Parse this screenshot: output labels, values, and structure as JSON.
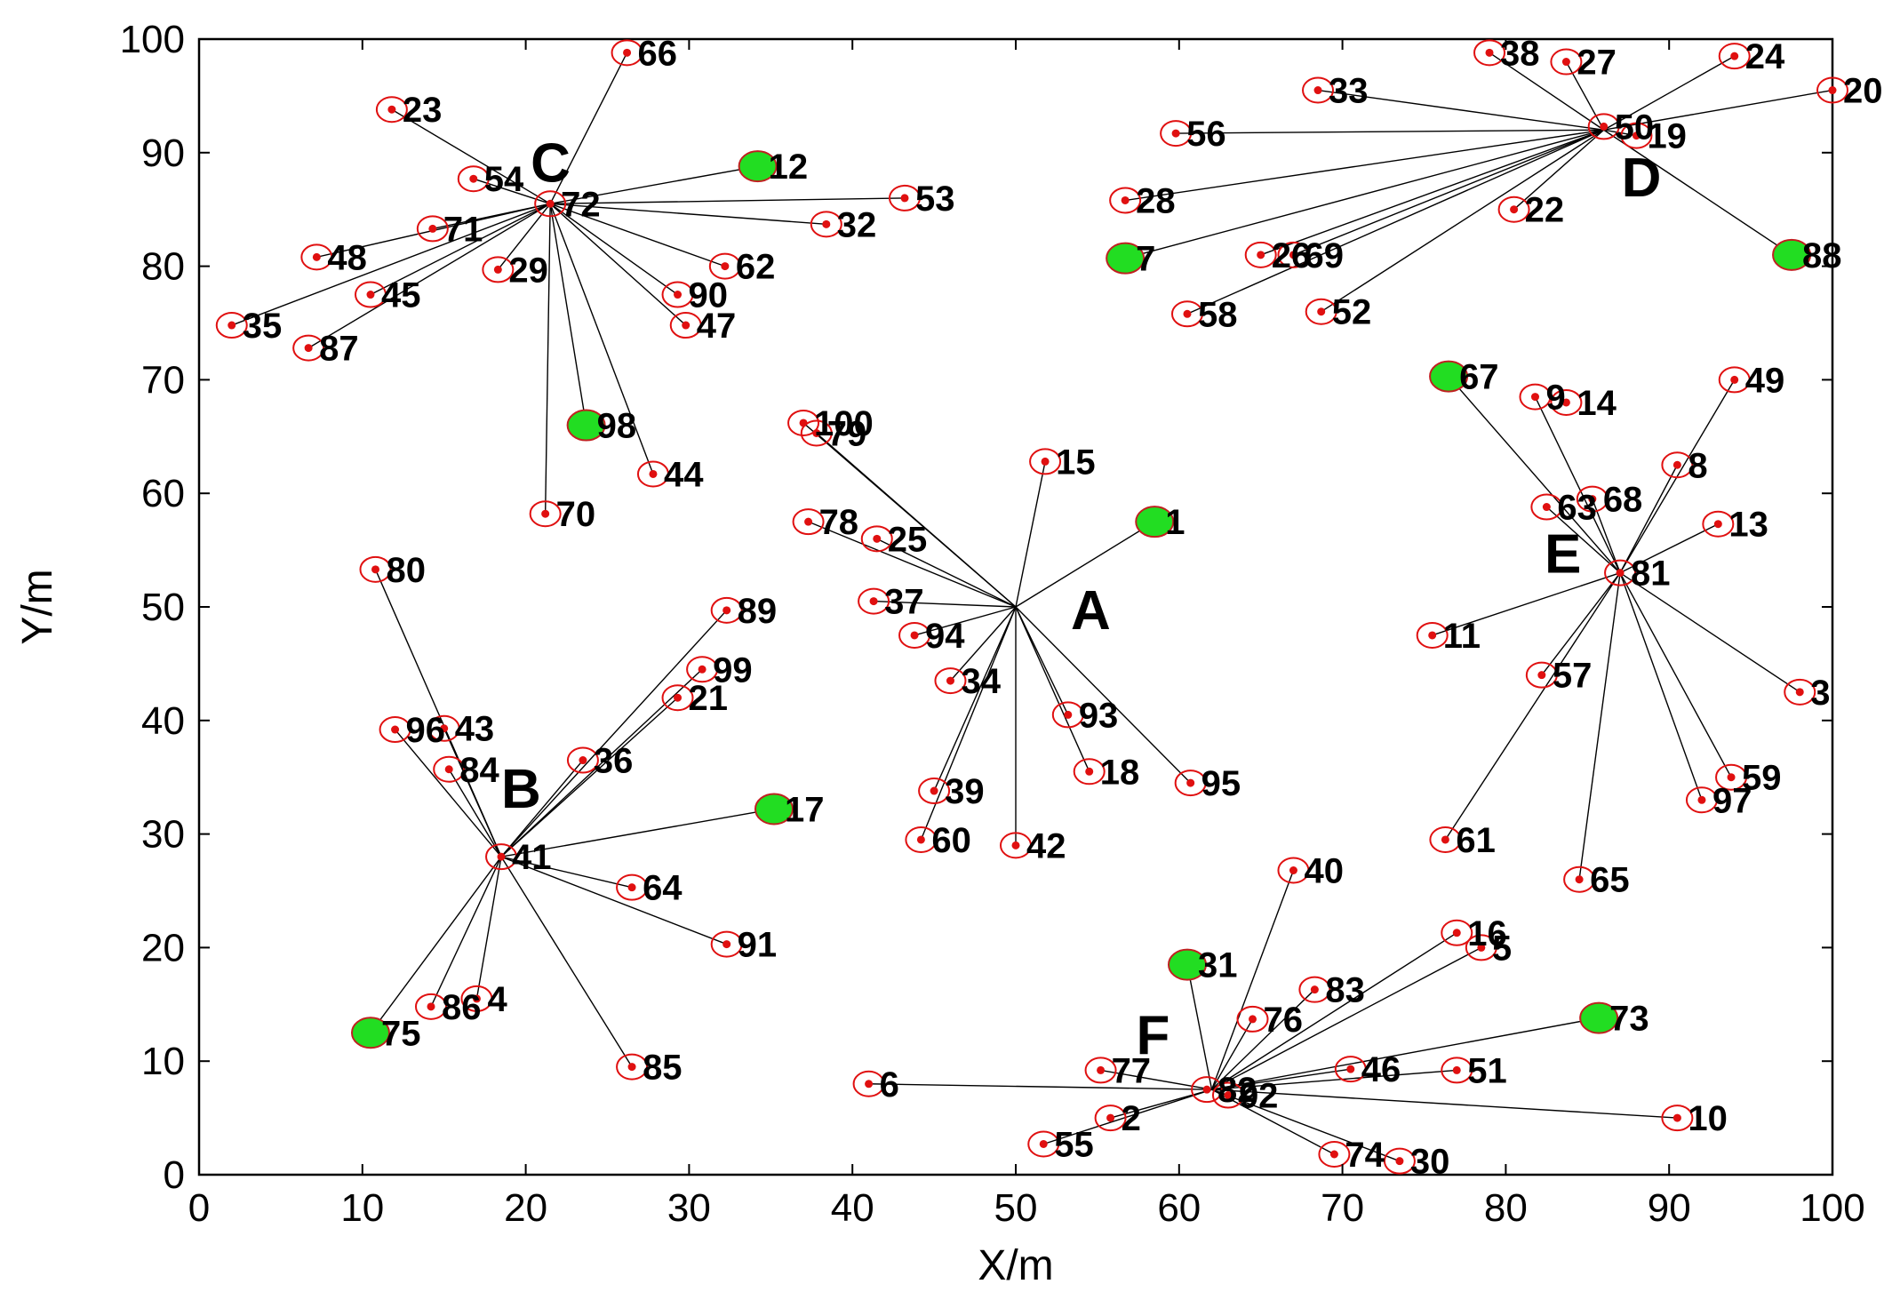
{
  "chart_data": {
    "type": "scatter",
    "xlabel": "X/m",
    "ylabel": "Y/m",
    "xlim": [
      0,
      100
    ],
    "ylim": [
      0,
      100
    ],
    "xticks": [
      0,
      10,
      20,
      30,
      40,
      50,
      60,
      70,
      80,
      90,
      100
    ],
    "yticks": [
      0,
      10,
      20,
      30,
      40,
      50,
      60,
      70,
      80,
      90,
      100
    ],
    "grid": false,
    "colors": {
      "node": "#e01010",
      "head": "#22dd22",
      "ring": "#e01010",
      "link": "#000000"
    },
    "clusters": [
      {
        "label": "A",
        "center": [
          50,
          50
        ]
      },
      {
        "label": "B",
        "center": [
          18.5,
          28
        ]
      },
      {
        "label": "C",
        "center": [
          21.5,
          85.5
        ]
      },
      {
        "label": "D",
        "center": [
          86,
          92
        ]
      },
      {
        "label": "E",
        "center": [
          87,
          53
        ]
      },
      {
        "label": "F",
        "center": [
          62,
          7.5
        ]
      }
    ],
    "nodes": [
      {
        "id": "1",
        "x": 58.5,
        "y": 57.5,
        "type": "head",
        "cluster": "A"
      },
      {
        "id": "2",
        "x": 55.8,
        "y": 5,
        "cluster": "F"
      },
      {
        "id": "3",
        "x": 98,
        "y": 42.5,
        "cluster": "E"
      },
      {
        "id": "4",
        "x": 17,
        "y": 15.5,
        "cluster": "B"
      },
      {
        "id": "5",
        "x": 78.5,
        "y": 20,
        "cluster": "F"
      },
      {
        "id": "6",
        "x": 41,
        "y": 8,
        "cluster": "F"
      },
      {
        "id": "7",
        "x": 56.7,
        "y": 80.7,
        "type": "head",
        "cluster": "D"
      },
      {
        "id": "8",
        "x": 90.5,
        "y": 62.5,
        "cluster": "E"
      },
      {
        "id": "9",
        "x": 81.8,
        "y": 68.5,
        "cluster": "E"
      },
      {
        "id": "10",
        "x": 90.5,
        "y": 5,
        "cluster": "F"
      },
      {
        "id": "11",
        "x": 75.5,
        "y": 47.5,
        "cluster": "E"
      },
      {
        "id": "12",
        "x": 34.2,
        "y": 88.8,
        "type": "head",
        "cluster": "C"
      },
      {
        "id": "13",
        "x": 93,
        "y": 57.3,
        "cluster": "E"
      },
      {
        "id": "14",
        "x": 83.7,
        "y": 68
      },
      {
        "id": "15",
        "x": 51.8,
        "y": 62.8,
        "cluster": "A"
      },
      {
        "id": "16",
        "x": 77,
        "y": 21.3,
        "cluster": "F"
      },
      {
        "id": "17",
        "x": 35.2,
        "y": 32.2,
        "type": "head",
        "cluster": "B"
      },
      {
        "id": "18",
        "x": 54.5,
        "y": 35.5,
        "cluster": "A"
      },
      {
        "id": "19",
        "x": 88,
        "y": 91.5,
        "cluster": "D"
      },
      {
        "id": "20",
        "x": 100,
        "y": 95.5,
        "cluster": "D"
      },
      {
        "id": "21",
        "x": 29.3,
        "y": 42,
        "cluster": "B"
      },
      {
        "id": "22",
        "x": 80.5,
        "y": 85,
        "cluster": "D"
      },
      {
        "id": "23",
        "x": 11.8,
        "y": 93.8,
        "cluster": "C"
      },
      {
        "id": "24",
        "x": 94,
        "y": 98.5,
        "cluster": "D"
      },
      {
        "id": "25",
        "x": 41.5,
        "y": 56,
        "cluster": "A"
      },
      {
        "id": "26",
        "x": 65,
        "y": 81,
        "cluster": "D"
      },
      {
        "id": "27",
        "x": 83.7,
        "y": 98,
        "cluster": "D"
      },
      {
        "id": "28",
        "x": 56.7,
        "y": 85.8,
        "cluster": "D"
      },
      {
        "id": "29",
        "x": 18.3,
        "y": 79.7,
        "cluster": "C"
      },
      {
        "id": "30",
        "x": 73.5,
        "y": 1.2,
        "cluster": "F"
      },
      {
        "id": "31",
        "x": 60.5,
        "y": 18.5,
        "type": "head",
        "cluster": "F"
      },
      {
        "id": "32",
        "x": 38.4,
        "y": 83.7,
        "cluster": "C"
      },
      {
        "id": "33",
        "x": 68.5,
        "y": 95.5,
        "cluster": "D"
      },
      {
        "id": "34",
        "x": 46,
        "y": 43.5,
        "cluster": "A"
      },
      {
        "id": "35",
        "x": 2,
        "y": 74.8,
        "cluster": "C"
      },
      {
        "id": "36",
        "x": 23.5,
        "y": 36.5,
        "cluster": "B"
      },
      {
        "id": "37",
        "x": 41.3,
        "y": 50.5,
        "cluster": "A"
      },
      {
        "id": "38",
        "x": 79,
        "y": 98.8,
        "cluster": "D"
      },
      {
        "id": "39",
        "x": 45,
        "y": 33.8,
        "cluster": "A"
      },
      {
        "id": "40",
        "x": 67,
        "y": 26.8,
        "cluster": "F"
      },
      {
        "id": "41",
        "x": 18.5,
        "y": 28
      },
      {
        "id": "42",
        "x": 50,
        "y": 29,
        "cluster": "A"
      },
      {
        "id": "43",
        "x": 15,
        "y": 39.3,
        "cluster": "B"
      },
      {
        "id": "44",
        "x": 27.8,
        "y": 61.7,
        "cluster": "C"
      },
      {
        "id": "45",
        "x": 10.5,
        "y": 77.5,
        "cluster": "C"
      },
      {
        "id": "46",
        "x": 70.5,
        "y": 9.3,
        "cluster": "F"
      },
      {
        "id": "47",
        "x": 29.8,
        "y": 74.8,
        "cluster": "C"
      },
      {
        "id": "48",
        "x": 7.2,
        "y": 80.8,
        "cluster": "C"
      },
      {
        "id": "49",
        "x": 94,
        "y": 70,
        "cluster": "E"
      },
      {
        "id": "50",
        "x": 86,
        "y": 92.3
      },
      {
        "id": "51",
        "x": 77,
        "y": 9.2,
        "cluster": "F"
      },
      {
        "id": "52",
        "x": 68.7,
        "y": 76,
        "cluster": "D"
      },
      {
        "id": "53",
        "x": 43.2,
        "y": 86,
        "cluster": "C"
      },
      {
        "id": "54",
        "x": 16.8,
        "y": 87.7,
        "cluster": "C"
      },
      {
        "id": "55",
        "x": 51.7,
        "y": 2.7,
        "cluster": "F"
      },
      {
        "id": "56",
        "x": 59.8,
        "y": 91.7,
        "cluster": "D"
      },
      {
        "id": "57",
        "x": 82.2,
        "y": 44,
        "cluster": "E"
      },
      {
        "id": "58",
        "x": 60.5,
        "y": 75.8,
        "cluster": "D"
      },
      {
        "id": "59",
        "x": 93.8,
        "y": 35,
        "cluster": "E"
      },
      {
        "id": "60",
        "x": 44.2,
        "y": 29.5,
        "cluster": "A"
      },
      {
        "id": "61",
        "x": 76.3,
        "y": 29.5,
        "cluster": "E"
      },
      {
        "id": "62",
        "x": 32.2,
        "y": 80,
        "cluster": "C"
      },
      {
        "id": "63",
        "x": 82.5,
        "y": 58.8,
        "cluster": "E"
      },
      {
        "id": "64",
        "x": 26.5,
        "y": 25.3,
        "cluster": "B"
      },
      {
        "id": "65",
        "x": 84.5,
        "y": 26,
        "cluster": "E"
      },
      {
        "id": "66",
        "x": 26.2,
        "y": 98.8,
        "cluster": "C"
      },
      {
        "id": "67",
        "x": 76.5,
        "y": 70.3,
        "type": "head",
        "cluster": "E"
      },
      {
        "id": "68",
        "x": 85.3,
        "y": 59.5,
        "cluster": "E"
      },
      {
        "id": "69",
        "x": 67,
        "y": 81,
        "cluster": "D"
      },
      {
        "id": "70",
        "x": 21.2,
        "y": 58.2,
        "cluster": "C"
      },
      {
        "id": "71",
        "x": 14.3,
        "y": 83.3,
        "cluster": "C"
      },
      {
        "id": "72",
        "x": 21.5,
        "y": 85.5
      },
      {
        "id": "73",
        "x": 85.7,
        "y": 13.8,
        "type": "head",
        "cluster": "F"
      },
      {
        "id": "74",
        "x": 69.5,
        "y": 1.8,
        "cluster": "F"
      },
      {
        "id": "75",
        "x": 10.5,
        "y": 12.5,
        "type": "head",
        "cluster": "B"
      },
      {
        "id": "76",
        "x": 64.5,
        "y": 13.7,
        "cluster": "F"
      },
      {
        "id": "77",
        "x": 55.2,
        "y": 9.2,
        "cluster": "F"
      },
      {
        "id": "78",
        "x": 37.3,
        "y": 57.5,
        "cluster": "A"
      },
      {
        "id": "79",
        "x": 37.8,
        "y": 65.3,
        "cluster": "A"
      },
      {
        "id": "80",
        "x": 10.8,
        "y": 53.3,
        "cluster": "B"
      },
      {
        "id": "81",
        "x": 87,
        "y": 53
      },
      {
        "id": "82",
        "x": 61.7,
        "y": 7.5
      },
      {
        "id": "83",
        "x": 68.3,
        "y": 16.3,
        "cluster": "F"
      },
      {
        "id": "84",
        "x": 15.3,
        "y": 35.7,
        "cluster": "B"
      },
      {
        "id": "85",
        "x": 26.5,
        "y": 9.5,
        "cluster": "B"
      },
      {
        "id": "86",
        "x": 14.2,
        "y": 14.8,
        "cluster": "B"
      },
      {
        "id": "87",
        "x": 6.7,
        "y": 72.8,
        "cluster": "C"
      },
      {
        "id": "88",
        "x": 97.5,
        "y": 81,
        "type": "head",
        "cluster": "D"
      },
      {
        "id": "89",
        "x": 32.3,
        "y": 49.7,
        "cluster": "B"
      },
      {
        "id": "90",
        "x": 29.3,
        "y": 77.5,
        "cluster": "C"
      },
      {
        "id": "91",
        "x": 32.3,
        "y": 20.3,
        "cluster": "B"
      },
      {
        "id": "92",
        "x": 63,
        "y": 7,
        "cluster": "F"
      },
      {
        "id": "93",
        "x": 53.2,
        "y": 40.5,
        "cluster": "A"
      },
      {
        "id": "94",
        "x": 43.8,
        "y": 47.5,
        "cluster": "A"
      },
      {
        "id": "95",
        "x": 60.7,
        "y": 34.5,
        "cluster": "A"
      },
      {
        "id": "96",
        "x": 12,
        "y": 39.2,
        "cluster": "B"
      },
      {
        "id": "97",
        "x": 92,
        "y": 33,
        "cluster": "E"
      },
      {
        "id": "98",
        "x": 23.7,
        "y": 66,
        "type": "head",
        "cluster": "C"
      },
      {
        "id": "99",
        "x": 30.8,
        "y": 44.5,
        "cluster": "B"
      },
      {
        "id": "100",
        "x": 37,
        "y": 66.2,
        "cluster": "A"
      }
    ]
  }
}
